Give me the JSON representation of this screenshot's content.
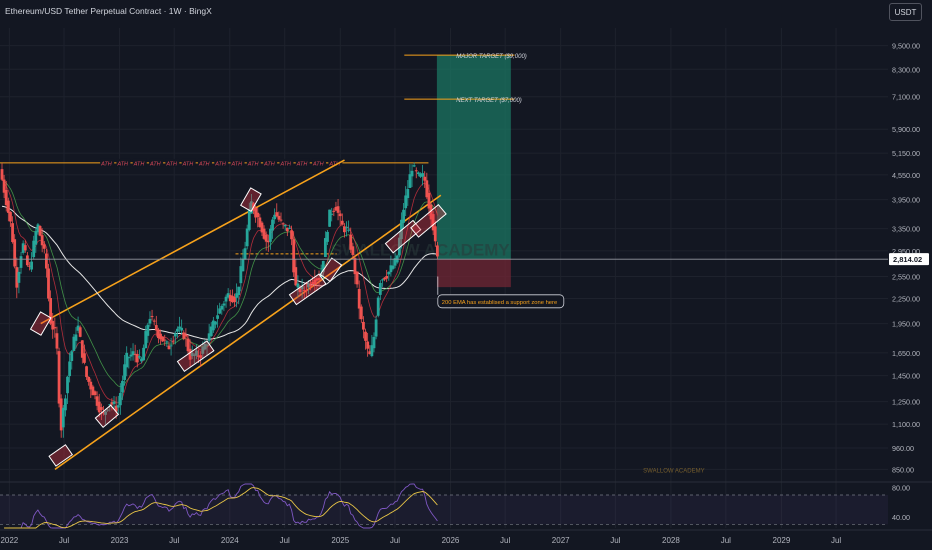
{
  "header": {
    "title": "Ethereum/USD Tether Perpetual Contract · 1W · BingX",
    "currency": "USDT"
  },
  "colors": {
    "background": "#131722",
    "grid": "#1e222d",
    "up": "#26a69a",
    "down": "#ef5350",
    "channel": "#f7a21b",
    "ath_line": "#f7a21b",
    "target_zone": "#1b7561",
    "stop_zone": "#6b2533",
    "ema200": "#e6e6e6",
    "ema_green": "#4caf50",
    "ema_red": "#f23645",
    "rsi": "#7e57c2",
    "rsi_ma": "#e8c547"
  },
  "chart_data": {
    "type": "candlestick",
    "timeframe": "1W",
    "y_scale": "log",
    "y_range": [
      800,
      10500
    ],
    "x_range": [
      "2021-12-01",
      "2029-12-20"
    ],
    "y_ticks": [
      9500,
      8300,
      7100,
      5900,
      5150,
      4550,
      3950,
      3350,
      2950,
      2550,
      2250,
      1950,
      1650,
      1450,
      1250,
      1100,
      960,
      850
    ],
    "y_tick_labels": [
      "9,500.00",
      "8,300.00",
      "7,100.00",
      "5,900.00",
      "5,150.00",
      "4,550.00",
      "3,950.00",
      "3,350.00",
      "2,950.00",
      "2,550.00",
      "2,250.00",
      "1,950.00",
      "1,650.00",
      "1,450.00",
      "1,250.00",
      "1,100.00",
      "960.00",
      "850.00"
    ],
    "x_ticks": [
      {
        "date": "2022-01-01",
        "label": "2022"
      },
      {
        "date": "2022-07-01",
        "label": "Jul"
      },
      {
        "date": "2023-01-01",
        "label": "2023"
      },
      {
        "date": "2023-07-01",
        "label": "Jul"
      },
      {
        "date": "2024-01-01",
        "label": "2024"
      },
      {
        "date": "2024-07-01",
        "label": "Jul"
      },
      {
        "date": "2025-01-01",
        "label": "2025"
      },
      {
        "date": "2025-07-01",
        "label": "Jul"
      },
      {
        "date": "2026-01-01",
        "label": "2026"
      },
      {
        "date": "2026-07-01",
        "label": "Jul"
      },
      {
        "date": "2027-01-01",
        "label": "2027"
      },
      {
        "date": "2027-07-01",
        "label": "Jul"
      },
      {
        "date": "2028-01-01",
        "label": "2028"
      },
      {
        "date": "2028-07-01",
        "label": "Jul"
      },
      {
        "date": "2029-01-01",
        "label": "2029"
      },
      {
        "date": "2029-07-01",
        "label": "Jul"
      }
    ],
    "price_path": [
      [
        "2021-12-01",
        4700
      ],
      [
        "2021-12-20",
        4000
      ],
      [
        "2022-01-10",
        3300
      ],
      [
        "2022-01-24",
        2400
      ],
      [
        "2022-02-14",
        3100
      ],
      [
        "2022-03-07",
        2600
      ],
      [
        "2022-04-04",
        3450
      ],
      [
        "2022-05-02",
        2800
      ],
      [
        "2022-05-16",
        2000
      ],
      [
        "2022-06-06",
        1800
      ],
      [
        "2022-06-20",
        1050
      ],
      [
        "2022-07-18",
        1550
      ],
      [
        "2022-08-15",
        1950
      ],
      [
        "2022-09-12",
        1450
      ],
      [
        "2022-10-10",
        1300
      ],
      [
        "2022-11-07",
        1150
      ],
      [
        "2022-11-28",
        1250
      ],
      [
        "2022-12-26",
        1200
      ],
      [
        "2023-01-23",
        1600
      ],
      [
        "2023-02-20",
        1650
      ],
      [
        "2023-03-13",
        1550
      ],
      [
        "2023-04-10",
        2050
      ],
      [
        "2023-05-08",
        1850
      ],
      [
        "2023-06-12",
        1700
      ],
      [
        "2023-07-10",
        1900
      ],
      [
        "2023-08-07",
        1820
      ],
      [
        "2023-08-21",
        1620
      ],
      [
        "2023-09-25",
        1630
      ],
      [
        "2023-10-23",
        1800
      ],
      [
        "2023-11-20",
        2050
      ],
      [
        "2023-12-25",
        2300
      ],
      [
        "2024-01-22",
        2250
      ],
      [
        "2024-02-19",
        2950
      ],
      [
        "2024-03-11",
        3900
      ],
      [
        "2024-04-08",
        3500
      ],
      [
        "2024-05-06",
        3050
      ],
      [
        "2024-05-27",
        3700
      ],
      [
        "2024-06-24",
        3400
      ],
      [
        "2024-07-22",
        3300
      ],
      [
        "2024-08-05",
        2400
      ],
      [
        "2024-09-02",
        2350
      ],
      [
        "2024-09-30",
        2500
      ],
      [
        "2024-10-28",
        2550
      ],
      [
        "2024-11-25",
        3600
      ],
      [
        "2024-12-16",
        3850
      ],
      [
        "2025-01-06",
        3400
      ],
      [
        "2025-01-27",
        3300
      ],
      [
        "2025-02-17",
        2700
      ],
      [
        "2025-03-10",
        2000
      ],
      [
        "2025-04-07",
        1600
      ],
      [
        "2025-04-21",
        1750
      ],
      [
        "2025-05-12",
        2500
      ],
      [
        "2025-06-09",
        2600
      ],
      [
        "2025-07-07",
        2800
      ],
      [
        "2025-07-28",
        3700
      ],
      [
        "2025-08-18",
        4400
      ],
      [
        "2025-08-25",
        4800
      ],
      [
        "2025-09-15",
        4500
      ],
      [
        "2025-10-06",
        4500
      ],
      [
        "2025-10-20",
        3900
      ],
      [
        "2025-11-03",
        3500
      ],
      [
        "2025-11-17",
        2814
      ]
    ],
    "current_price": {
      "value": 2814.02,
      "label": "2,814.02"
    },
    "annotations": {
      "major_target": {
        "value": 9000,
        "label": "MAJOR TARGET ($9,000)"
      },
      "next_target": {
        "value": 7000,
        "label": "NEXT TARGET ($7,000)"
      },
      "ath": {
        "value": 4870,
        "label": "ATH",
        "repeat": 15
      },
      "ema_note": "200 EMA has establised a support zone here",
      "watermark": "SWALLOW ACADEMY"
    },
    "long_position": {
      "entry": 2814,
      "target": 9000,
      "stop": 2400,
      "start": "2025-11-17",
      "end": "2026-07-20"
    },
    "rsi": {
      "y_ticks": [
        80,
        40
      ],
      "y_tick_labels": [
        "80.00",
        "40.00"
      ],
      "upper": 70,
      "lower": 30,
      "range": [
        25,
        85
      ]
    }
  }
}
